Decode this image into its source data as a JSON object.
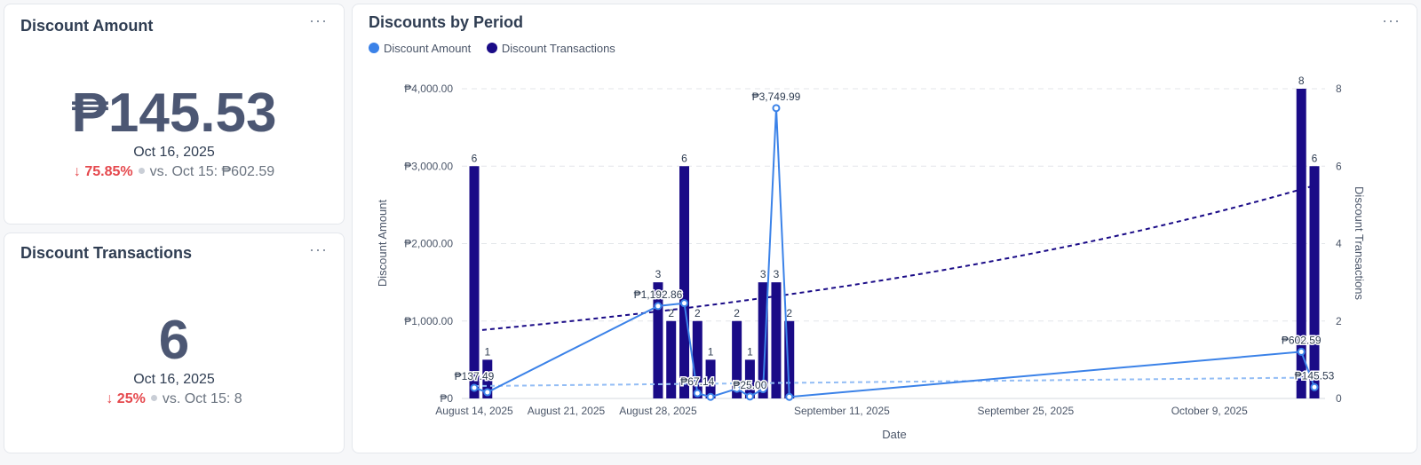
{
  "kpi_amount": {
    "title": "Discount Amount",
    "more": "···",
    "value": "₱145.53",
    "date": "Oct 16, 2025",
    "change": "75.85%",
    "compare": "vs. Oct 15: ₱602.59"
  },
  "kpi_transactions": {
    "title": "Discount Transactions",
    "more": "···",
    "value": "6",
    "date": "Oct 16, 2025",
    "change": "25%",
    "compare": "vs. Oct 15: 8"
  },
  "chart_card": {
    "title": "Discounts by Period",
    "more": "···"
  },
  "colors": {
    "amount_line": "#3b82e8",
    "bars": "#1a0b87",
    "trend_bars": "#1a0b87",
    "trend_amount": "#93bdf5",
    "down": "#e5484d"
  },
  "chart_data": {
    "type": "bar",
    "title": "Discounts by Period",
    "xlabel": "Date",
    "ylabel": "Discount Amount",
    "y2label": "Discount Transactions",
    "legend": [
      {
        "name": "Discount Amount",
        "color": "#3b82e8"
      },
      {
        "name": "Discount Transactions",
        "color": "#1a0b87"
      }
    ],
    "xlim_days": [
      0,
      64
    ],
    "x_ticks": [
      {
        "day": 0,
        "label": "August 14, 2025"
      },
      {
        "day": 7,
        "label": "August 21, 2025"
      },
      {
        "day": 14,
        "label": "August 28, 2025"
      },
      {
        "day": 28,
        "label": "September 11, 2025"
      },
      {
        "day": 42,
        "label": "September 25, 2025"
      },
      {
        "day": 56,
        "label": "October 9, 2025"
      }
    ],
    "y_ticks": [
      {
        "v": 0,
        "label": "₱0"
      },
      {
        "v": 1000,
        "label": "₱1,000.00"
      },
      {
        "v": 2000,
        "label": "₱2,000.00"
      },
      {
        "v": 3000,
        "label": "₱3,000.00"
      },
      {
        "v": 4000,
        "label": "₱4,000.00"
      }
    ],
    "y2_ticks": [
      "0",
      "2",
      "4",
      "6",
      "8"
    ],
    "ylim": [
      0,
      4000
    ],
    "y2lim": [
      0,
      8
    ],
    "series": [
      {
        "name": "Discount Transactions",
        "kind": "bar",
        "axis": "right",
        "points": [
          {
            "day": 0,
            "value": 6,
            "label": "6"
          },
          {
            "day": 1,
            "value": 1,
            "label": "1"
          },
          {
            "day": 14,
            "value": 3,
            "label": "3"
          },
          {
            "day": 15,
            "value": 2,
            "label": "2"
          },
          {
            "day": 16,
            "value": 6,
            "label": "6"
          },
          {
            "day": 17,
            "value": 2,
            "label": "2"
          },
          {
            "day": 18,
            "value": 1,
            "label": "1"
          },
          {
            "day": 20,
            "value": 2,
            "label": "2"
          },
          {
            "day": 21,
            "value": 1,
            "label": "1"
          },
          {
            "day": 22,
            "value": 3,
            "label": "3"
          },
          {
            "day": 23,
            "value": 3,
            "label": "3"
          },
          {
            "day": 24,
            "value": 2,
            "label": "2"
          },
          {
            "day": 63,
            "value": 8,
            "label": "8"
          },
          {
            "day": 64,
            "value": 6,
            "label": "6"
          }
        ]
      },
      {
        "name": "Discount Amount",
        "kind": "line",
        "axis": "left",
        "points": [
          {
            "day": 0,
            "value": 137.49,
            "label": "₱137.49"
          },
          {
            "day": 1,
            "value": 80,
            "label": ""
          },
          {
            "day": 14,
            "value": 1192.86,
            "label": "₱1,192.86"
          },
          {
            "day": 16,
            "value": 1230,
            "label": ""
          },
          {
            "day": 17,
            "value": 67.14,
            "label": "₱67.14"
          },
          {
            "day": 18,
            "value": 20,
            "label": ""
          },
          {
            "day": 20,
            "value": 125,
            "label": ""
          },
          {
            "day": 21,
            "value": 25,
            "label": "₱25.00"
          },
          {
            "day": 22,
            "value": 120,
            "label": ""
          },
          {
            "day": 23,
            "value": 3749.99,
            "label": "₱3,749.99"
          },
          {
            "day": 24,
            "value": 20,
            "label": ""
          },
          {
            "day": 63,
            "value": 602.59,
            "label": "₱602.59"
          },
          {
            "day": 64,
            "value": 145.53,
            "label": "₱145.53"
          }
        ]
      }
    ],
    "trendlines": [
      {
        "name": "Discount Transactions trend",
        "axis": "right",
        "start": [
          0,
          1.75
        ],
        "end": [
          64,
          5.5
        ],
        "curve": "exponential"
      },
      {
        "name": "Discount Amount trend",
        "axis": "left",
        "start": [
          0,
          160
        ],
        "end": [
          64,
          270
        ],
        "curve": "linear"
      }
    ]
  }
}
